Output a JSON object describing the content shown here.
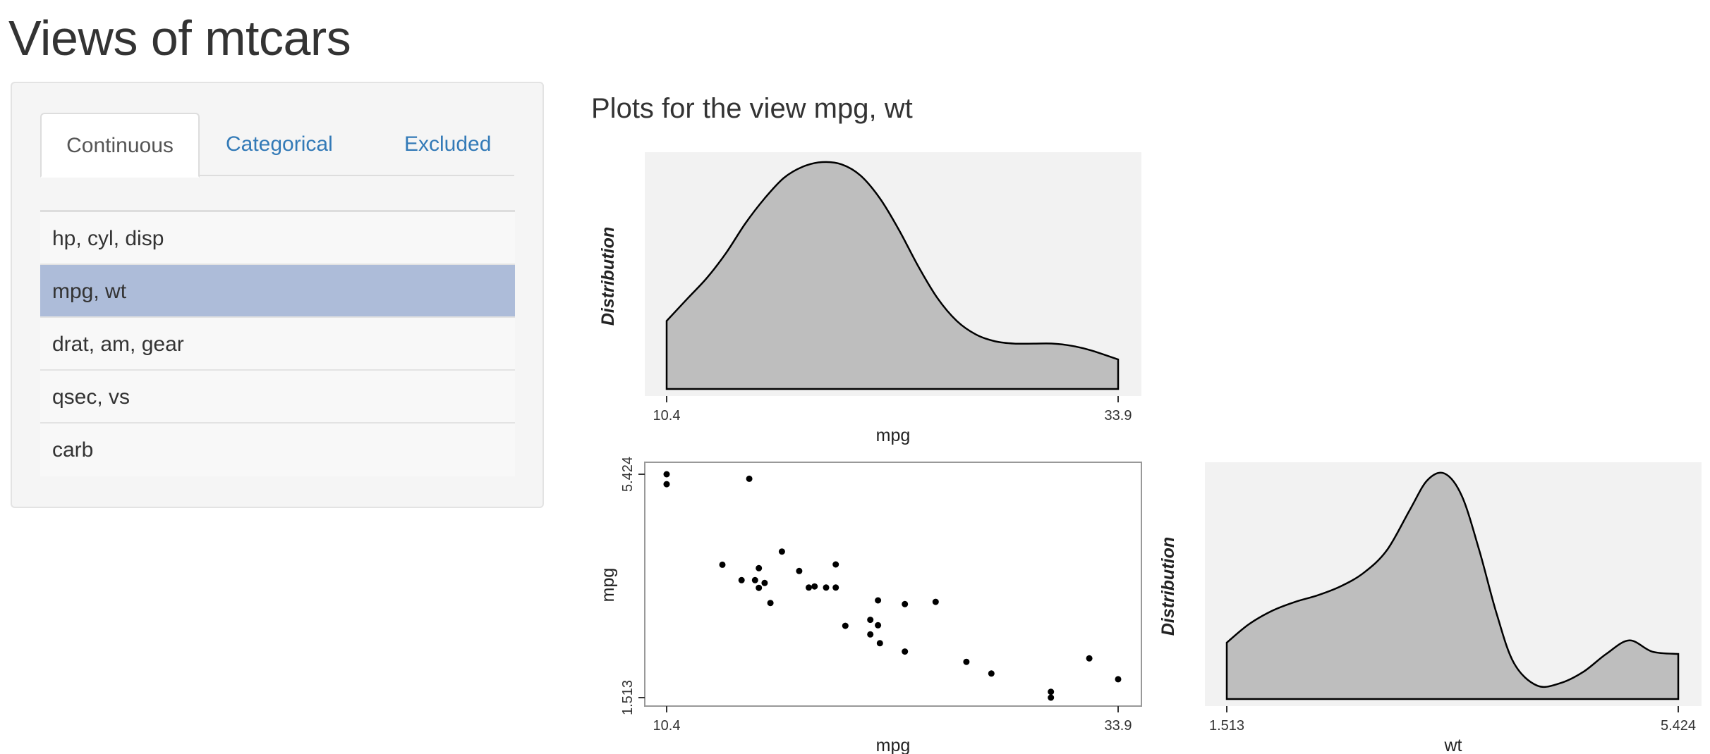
{
  "page": {
    "title": "Views of mtcars"
  },
  "sidebar": {
    "tabs": [
      {
        "label": "Continuous",
        "active": true
      },
      {
        "label": "Categorical",
        "active": false
      },
      {
        "label": "Excluded",
        "active": false
      }
    ],
    "views": [
      {
        "label": "hp, cyl, disp",
        "selected": false
      },
      {
        "label": "mpg, wt",
        "selected": true
      },
      {
        "label": "drat, am, gear",
        "selected": false
      },
      {
        "label": "qsec, vs",
        "selected": false
      },
      {
        "label": "carb",
        "selected": false
      }
    ]
  },
  "main": {
    "heading": "Plots for the view mpg, wt"
  },
  "colors": {
    "selected": "#adbcd9",
    "link": "#337ab7",
    "density_fill": "#bebebe",
    "panel_bg": "#f2f2f2"
  },
  "chart_data": [
    {
      "type": "area",
      "panel": "density-mpg",
      "xlabel": "mpg",
      "ylabel": "Distribution",
      "xlim": [
        10.4,
        33.9
      ],
      "x_ticks": [
        "10.4",
        "33.9"
      ],
      "x": [
        10.4,
        11.5,
        12.5,
        13.5,
        14.5,
        15.5,
        16.5,
        17.5,
        18.5,
        19.5,
        20.5,
        21.5,
        22.5,
        23.5,
        24.5,
        25.5,
        26.5,
        27.5,
        28.5,
        29.5,
        30.5,
        31.5,
        32.5,
        33.9
      ],
      "y": [
        0.3,
        0.4,
        0.49,
        0.6,
        0.73,
        0.84,
        0.93,
        0.98,
        1.0,
        0.99,
        0.94,
        0.84,
        0.7,
        0.54,
        0.4,
        0.3,
        0.24,
        0.21,
        0.2,
        0.2,
        0.2,
        0.19,
        0.17,
        0.13
      ]
    },
    {
      "type": "scatter",
      "panel": "scatter-mpg-wt",
      "xlabel": "mpg",
      "ylabel": "mpg",
      "xlim": [
        10.4,
        33.9
      ],
      "ylim": [
        1.513,
        5.424
      ],
      "x_ticks": [
        "10.4",
        "33.9"
      ],
      "y_ticks": [
        "1.513",
        "5.424"
      ],
      "points": [
        [
          21.0,
          2.62
        ],
        [
          21.0,
          2.875
        ],
        [
          22.8,
          2.32
        ],
        [
          21.4,
          3.215
        ],
        [
          18.7,
          3.44
        ],
        [
          18.1,
          3.46
        ],
        [
          14.3,
          3.57
        ],
        [
          24.4,
          3.19
        ],
        [
          22.8,
          3.15
        ],
        [
          19.2,
          3.44
        ],
        [
          17.8,
          3.44
        ],
        [
          16.4,
          4.07
        ],
        [
          17.3,
          3.73
        ],
        [
          15.2,
          3.78
        ],
        [
          10.4,
          5.25
        ],
        [
          10.4,
          5.424
        ],
        [
          14.7,
          5.345
        ],
        [
          32.4,
          2.2
        ],
        [
          30.4,
          1.615
        ],
        [
          33.9,
          1.835
        ],
        [
          21.5,
          2.465
        ],
        [
          15.5,
          3.52
        ],
        [
          15.2,
          3.435
        ],
        [
          13.3,
          3.84
        ],
        [
          19.2,
          3.845
        ],
        [
          27.3,
          1.935
        ],
        [
          26.0,
          2.14
        ],
        [
          30.4,
          1.513
        ],
        [
          15.8,
          3.17
        ],
        [
          19.7,
          2.77
        ],
        [
          15.0,
          3.57
        ],
        [
          21.4,
          2.78
        ]
      ]
    },
    {
      "type": "area",
      "panel": "density-wt",
      "xlabel": "wt",
      "ylabel": "Distribution",
      "xlim": [
        1.513,
        5.424
      ],
      "x_ticks": [
        "1.513",
        "5.424"
      ],
      "x": [
        1.513,
        1.7,
        1.9,
        2.1,
        2.3,
        2.5,
        2.7,
        2.9,
        3.1,
        3.25,
        3.4,
        3.55,
        3.7,
        3.85,
        4.0,
        4.2,
        4.4,
        4.6,
        4.8,
        5.0,
        5.2,
        5.424
      ],
      "y": [
        0.25,
        0.33,
        0.39,
        0.43,
        0.46,
        0.5,
        0.56,
        0.66,
        0.84,
        0.97,
        1.0,
        0.9,
        0.66,
        0.38,
        0.16,
        0.06,
        0.07,
        0.12,
        0.2,
        0.26,
        0.21,
        0.2
      ]
    }
  ]
}
